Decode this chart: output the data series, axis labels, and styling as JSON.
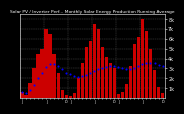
{
  "title": "Solar PV / Inverter Perf... Monthly Solar Energy Production Running Average",
  "bar_values": [
    0.6,
    0.3,
    1.5,
    3.0,
    4.5,
    5.0,
    7.0,
    6.5,
    4.5,
    2.5,
    0.8,
    0.3,
    0.2,
    0.5,
    2.0,
    3.5,
    5.2,
    5.8,
    7.5,
    7.0,
    5.2,
    4.2,
    3.5,
    3.0,
    0.4,
    0.6,
    1.4,
    3.2,
    5.5,
    6.2,
    8.0,
    6.8,
    5.0,
    2.8,
    1.1,
    0.5
  ],
  "running_avg": [
    0.6,
    0.45,
    0.8,
    1.35,
    1.98,
    2.48,
    3.13,
    3.43,
    3.49,
    3.27,
    2.91,
    2.58,
    2.38,
    2.21,
    2.16,
    2.2,
    2.35,
    2.52,
    2.73,
    2.95,
    3.08,
    3.16,
    3.23,
    3.28,
    3.13,
    3.01,
    2.91,
    2.93,
    3.07,
    3.23,
    3.44,
    3.54,
    3.57,
    3.51,
    3.38,
    3.24
  ],
  "bar_color": "#cc0000",
  "avg_color": "#0000ff",
  "plot_bg_color": "#000000",
  "fig_bg_color": "#000000",
  "grid_color": "#555555",
  "title_color": "#ffffff",
  "tick_color": "#ffffff",
  "ylim": [
    0,
    8.5
  ],
  "ytick_vals": [
    1,
    2,
    3,
    4,
    5,
    6,
    7,
    8
  ],
  "ytick_labels": [
    "1k",
    "2k",
    "3k",
    "4k",
    "5k",
    "6k",
    "7k",
    "8k"
  ],
  "title_fontsize": 3.2,
  "tick_fontsize": 3.5,
  "n_bars": 36
}
